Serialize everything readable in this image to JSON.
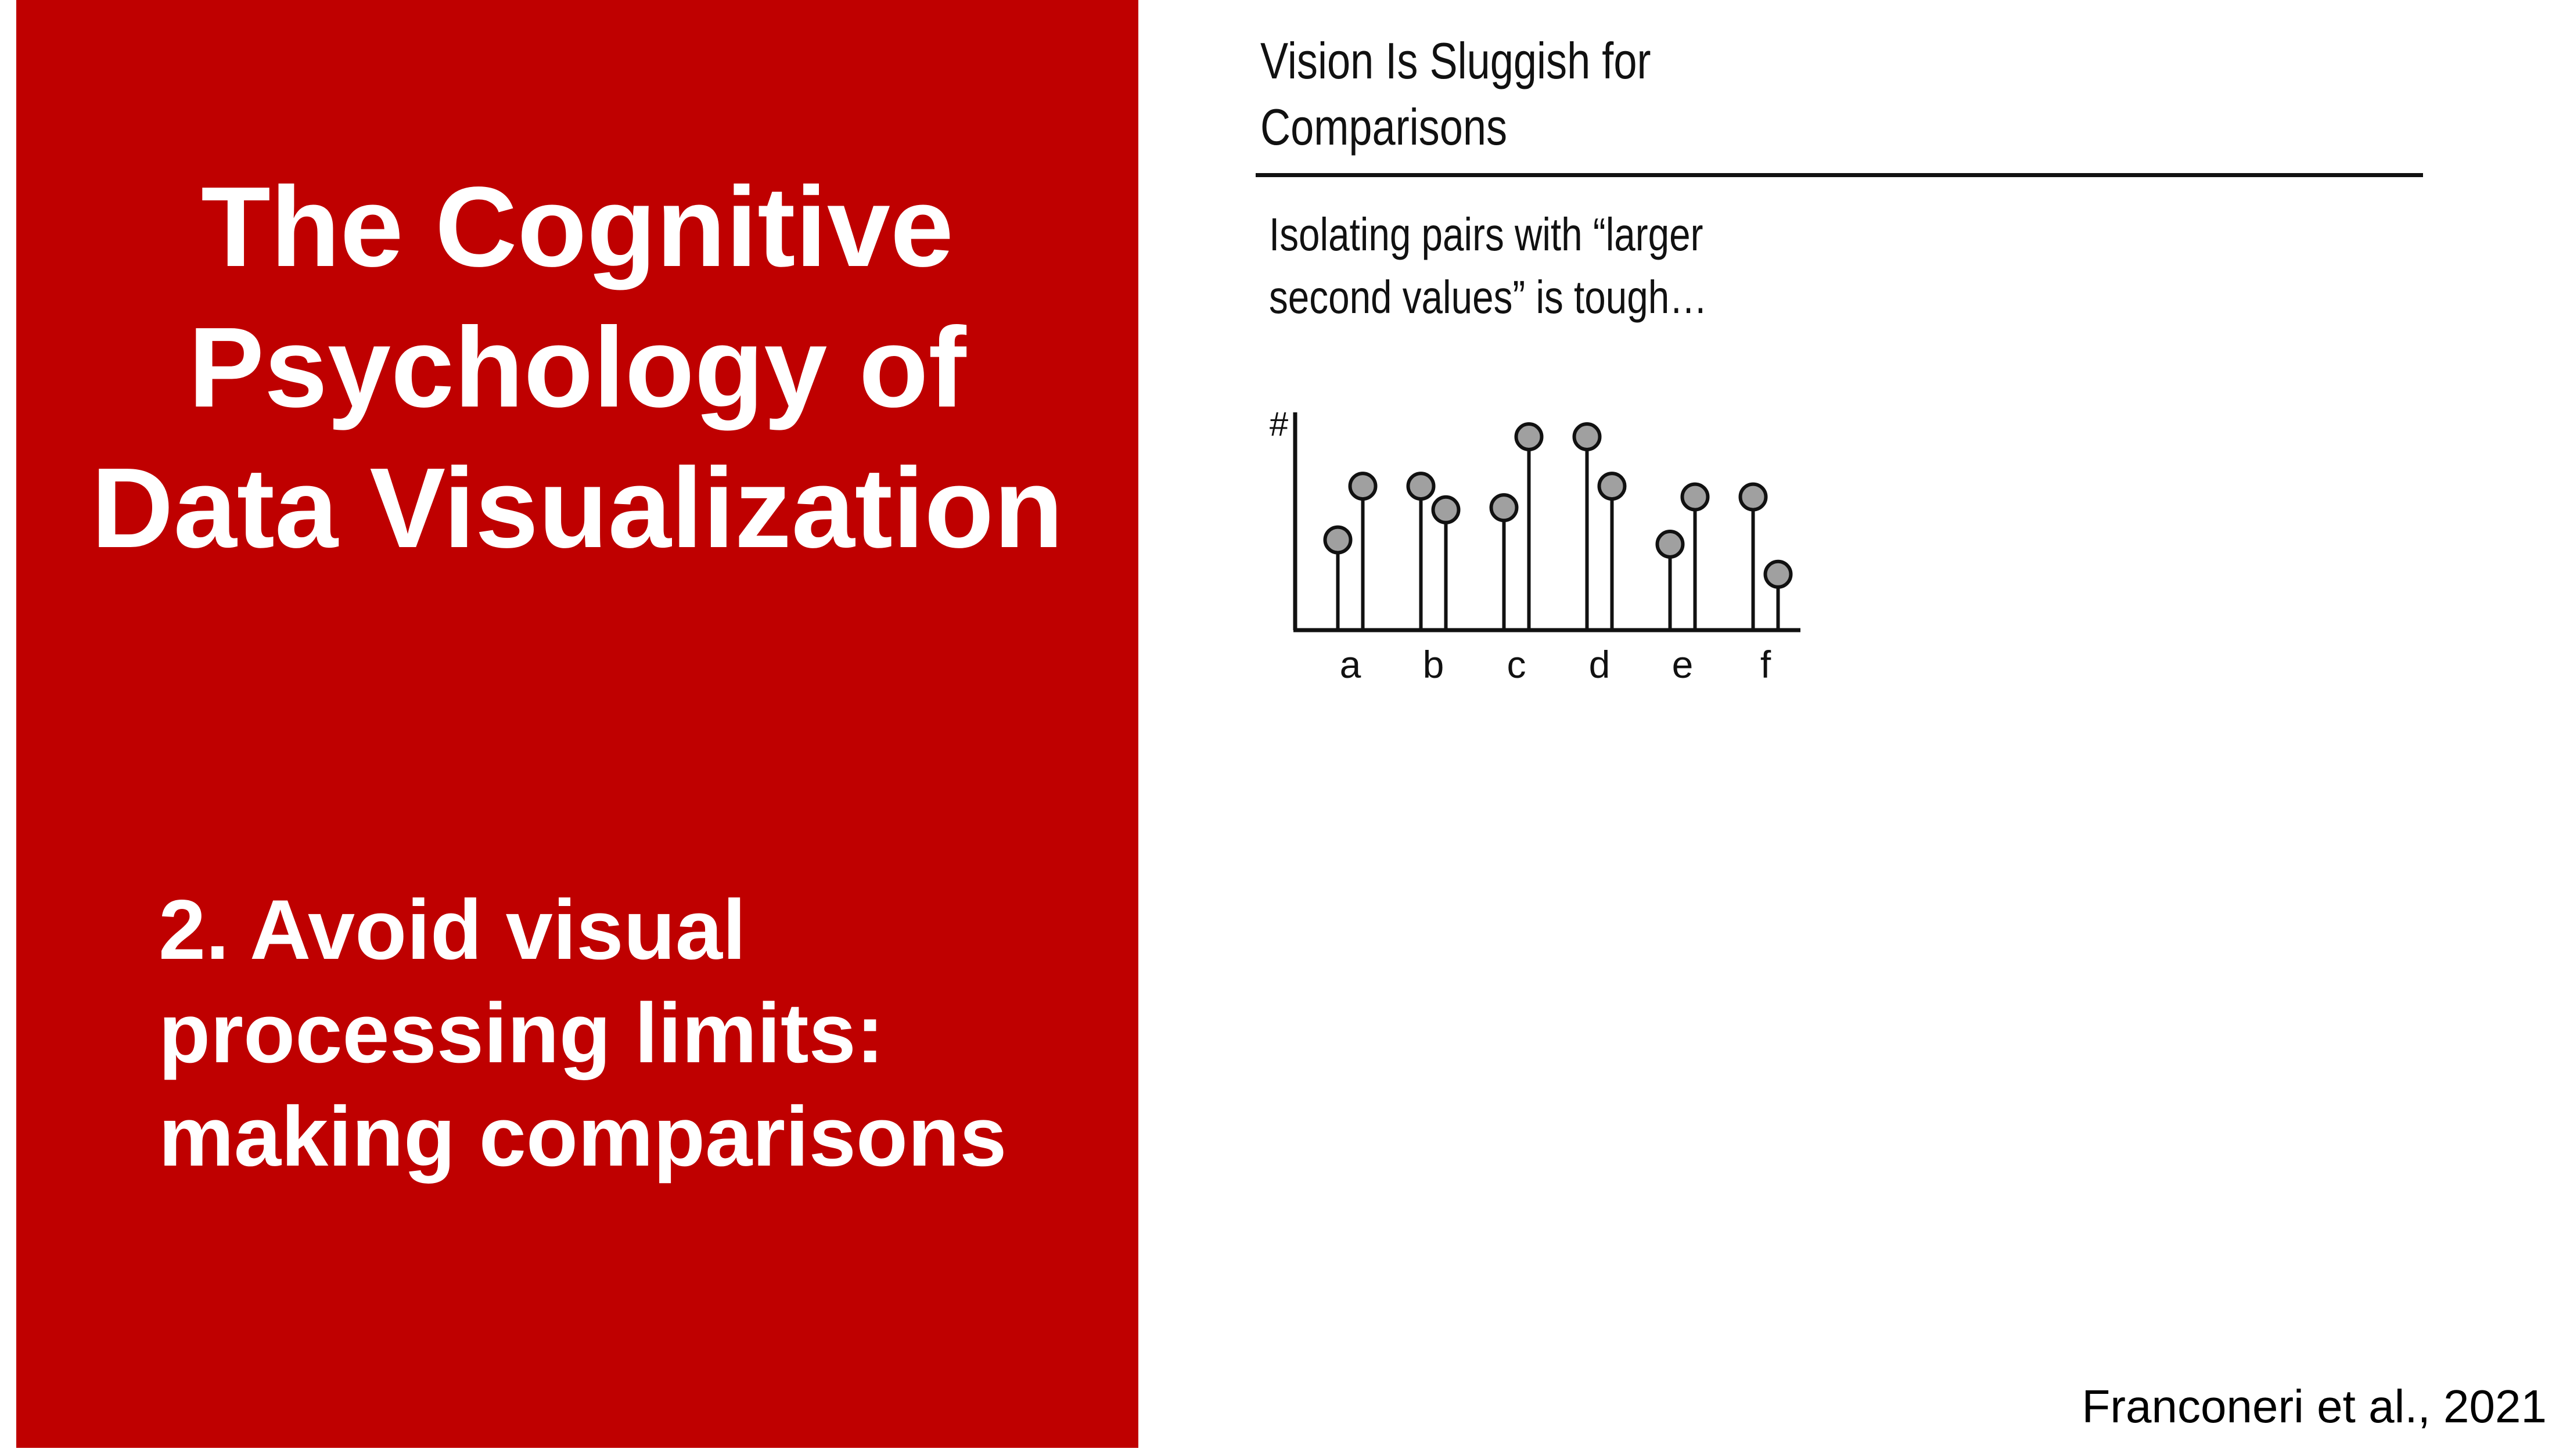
{
  "slide": {
    "main_title": "The Cognitive\nPsychology of\nData Visualization",
    "subtitle": "2. Avoid visual\nprocessing limits:\nmaking comparisons",
    "citation": "Franconeri et al., 2021",
    "panel_color": "#bf0000"
  },
  "figure": {
    "title": "Vision Is Sluggish for\nComparisons",
    "caption": "Isolating pairs with “larger\nsecond values” is tough…"
  },
  "chart_data": {
    "type": "scatter",
    "ylabel": "#",
    "xlabel": "",
    "categories": [
      "a",
      "b",
      "c",
      "d",
      "e",
      "f"
    ],
    "series": [
      {
        "values": [
          4.2,
          6.7,
          5.7,
          9.0,
          4.0,
          6.2
        ]
      },
      {
        "values": [
          6.7,
          5.6,
          9.0,
          6.7,
          6.2,
          2.6
        ]
      }
    ],
    "ylim": [
      0,
      10
    ],
    "marker_color": "#a0a0a0",
    "grid": false
  }
}
